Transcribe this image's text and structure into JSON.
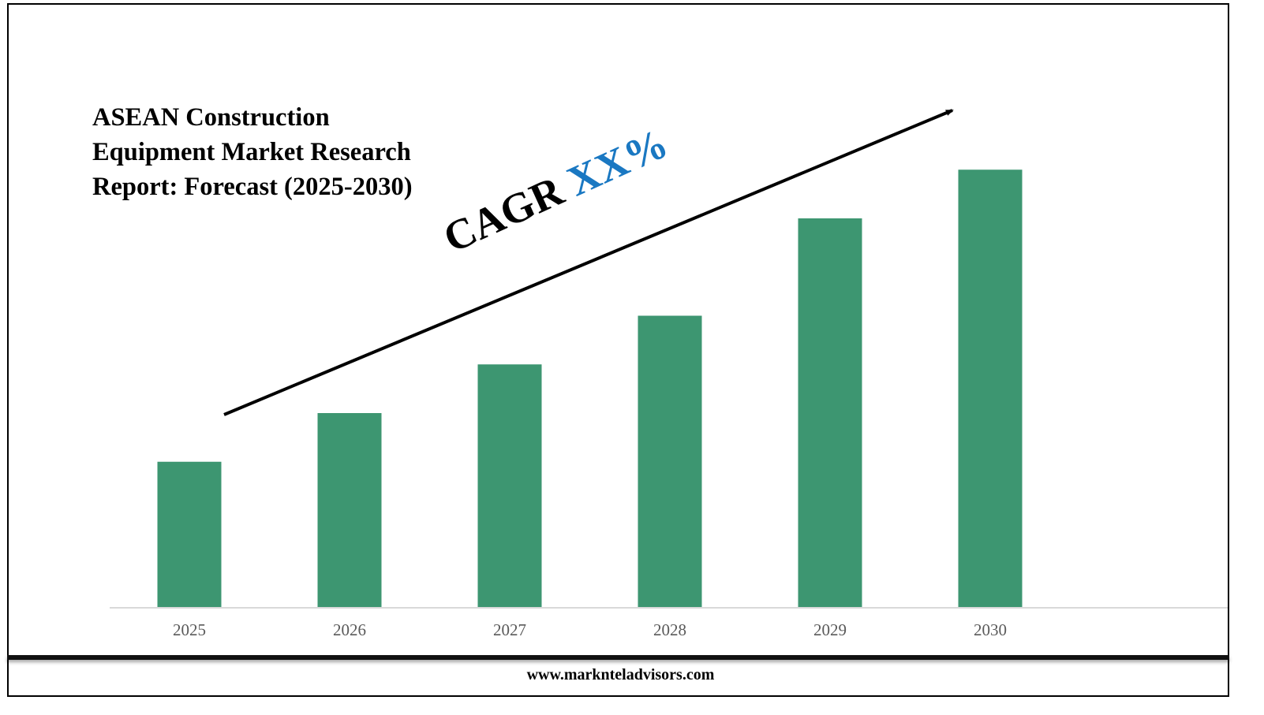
{
  "chart_data": {
    "type": "bar",
    "title": "ASEAN Construction Equipment Market Research Report: Forecast (2025-2030)",
    "title_lines": [
      "ASEAN Construction",
      "Equipment Market Research",
      "Report: Forecast (2025-2030)"
    ],
    "categories": [
      "2025",
      "2026",
      "2027",
      "2028",
      "2029",
      "2030"
    ],
    "values": [
      3,
      4,
      5,
      6,
      8,
      9
    ],
    "ylim": [
      0,
      12
    ],
    "grid": false,
    "legend": "none",
    "annotation": {
      "prefix": "CAGR",
      "value": "XX%"
    },
    "colors": {
      "bar": "#3d9671",
      "axis": "#d9d9d9",
      "tick_label": "#595959",
      "cagr_value": "#1a78c2",
      "arrow": "#000000"
    }
  },
  "footer": {
    "url": "www.marknteladvisors.com"
  }
}
